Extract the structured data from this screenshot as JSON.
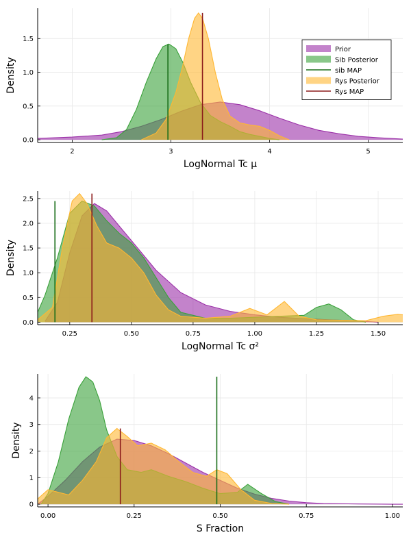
{
  "chart_data": [
    {
      "type": "area",
      "xlabel": "LogNormal Tc μ",
      "ylabel": "Density",
      "xlim": [
        1.65,
        5.35
      ],
      "ylim": [
        -0.04,
        1.95
      ],
      "xticks": [
        2,
        3,
        4,
        5
      ],
      "xtick_labels": [
        "2",
        "3",
        "4",
        "5"
      ],
      "yticks": [
        0,
        0.5,
        1,
        1.5
      ],
      "ytick_labels": [
        "0.0",
        "0.5",
        "1.0",
        "1.5"
      ],
      "grid": true,
      "legend": {
        "placement": "top-right",
        "entries": [
          {
            "label": "Prior",
            "kind": "fill",
            "color": "#9b30a8"
          },
          {
            "label": "Sib Posterior",
            "kind": "fill",
            "color": "#3aa13a"
          },
          {
            "label": "sib MAP",
            "kind": "line",
            "color": "#1a6e1a"
          },
          {
            "label": "Rys Posterior",
            "kind": "fill",
            "color": "#ffb732"
          },
          {
            "label": "Rys MAP",
            "kind": "line",
            "color": "#8b1a1a"
          }
        ]
      },
      "series": [
        {
          "name": "Prior",
          "color": "#9b30a8",
          "x": [
            1.65,
            2.0,
            2.3,
            2.5,
            2.7,
            2.9,
            3.1,
            3.3,
            3.5,
            3.7,
            3.9,
            4.1,
            4.3,
            4.5,
            4.7,
            4.9,
            5.1,
            5.35
          ],
          "y": [
            0.02,
            0.04,
            0.07,
            0.12,
            0.2,
            0.3,
            0.42,
            0.52,
            0.56,
            0.52,
            0.43,
            0.32,
            0.22,
            0.14,
            0.09,
            0.05,
            0.03,
            0.01
          ]
        },
        {
          "name": "Sib Posterior",
          "color": "#3aa13a",
          "x": [
            2.3,
            2.45,
            2.55,
            2.65,
            2.75,
            2.85,
            2.92,
            2.98,
            3.05,
            3.12,
            3.2,
            3.3,
            3.4,
            3.5,
            3.6,
            3.7,
            3.8,
            3.9,
            4.0,
            4.1
          ],
          "y": [
            0.0,
            0.03,
            0.15,
            0.45,
            0.85,
            1.2,
            1.38,
            1.42,
            1.35,
            1.15,
            0.85,
            0.55,
            0.36,
            0.27,
            0.2,
            0.12,
            0.08,
            0.05,
            0.02,
            0.0
          ]
        },
        {
          "name": "Rys Posterior",
          "color": "#ffb732",
          "x": [
            2.7,
            2.85,
            2.95,
            3.05,
            3.12,
            3.18,
            3.24,
            3.28,
            3.32,
            3.38,
            3.45,
            3.52,
            3.6,
            3.7,
            3.8,
            3.9,
            4.0,
            4.1,
            4.2
          ],
          "y": [
            0.0,
            0.1,
            0.3,
            0.7,
            1.1,
            1.5,
            1.8,
            1.88,
            1.8,
            1.5,
            1.0,
            0.6,
            0.35,
            0.25,
            0.22,
            0.2,
            0.14,
            0.06,
            0.0
          ]
        }
      ],
      "vlines": [
        {
          "name": "sib MAP",
          "color": "#1a6e1a",
          "x": 2.97,
          "y": 1.42
        },
        {
          "name": "Rys MAP",
          "color": "#8b1a1a",
          "x": 3.32,
          "y": 1.88
        }
      ]
    },
    {
      "type": "area",
      "xlabel": "LogNormal Tc σ²",
      "ylabel": "Density",
      "xlim": [
        0.12,
        1.6
      ],
      "ylim": [
        -0.05,
        2.65
      ],
      "xticks": [
        0.25,
        0.5,
        0.75,
        1.0,
        1.25,
        1.5
      ],
      "xtick_labels": [
        "0.25",
        "0.50",
        "0.75",
        "1.00",
        "1.25",
        "1.50"
      ],
      "yticks": [
        0,
        0.5,
        1,
        1.5,
        2,
        2.5
      ],
      "ytick_labels": [
        "0.0",
        "0.5",
        "1.0",
        "1.5",
        "2.0",
        "2.5"
      ],
      "grid": true,
      "series": [
        {
          "name": "Prior",
          "color": "#9b30a8",
          "x": [
            0.15,
            0.2,
            0.25,
            0.3,
            0.35,
            0.4,
            0.45,
            0.5,
            0.55,
            0.6,
            0.7,
            0.8,
            0.9,
            1.0,
            1.1,
            1.2,
            1.3,
            1.4,
            1.5
          ],
          "y": [
            0.02,
            0.4,
            1.4,
            2.15,
            2.4,
            2.25,
            1.95,
            1.65,
            1.35,
            1.05,
            0.6,
            0.35,
            0.22,
            0.15,
            0.1,
            0.07,
            0.05,
            0.03,
            0.0
          ]
        },
        {
          "name": "Sib Posterior",
          "color": "#3aa13a",
          "x": [
            0.12,
            0.15,
            0.2,
            0.25,
            0.3,
            0.35,
            0.4,
            0.45,
            0.5,
            0.55,
            0.6,
            0.65,
            0.7,
            0.8,
            0.9,
            1.0,
            1.1,
            1.2,
            1.25,
            1.3,
            1.35,
            1.4,
            1.45
          ],
          "y": [
            0.2,
            0.55,
            1.3,
            2.2,
            2.45,
            2.35,
            2.05,
            1.8,
            1.6,
            1.3,
            0.9,
            0.5,
            0.2,
            0.08,
            0.08,
            0.1,
            0.12,
            0.14,
            0.3,
            0.37,
            0.25,
            0.05,
            0.0
          ]
        },
        {
          "name": "Rys Posterior",
          "color": "#ffb732",
          "x": [
            0.12,
            0.18,
            0.22,
            0.26,
            0.29,
            0.32,
            0.36,
            0.4,
            0.45,
            0.5,
            0.55,
            0.6,
            0.65,
            0.7,
            0.8,
            0.9,
            0.98,
            1.05,
            1.12,
            1.18,
            1.25,
            1.35,
            1.45,
            1.52,
            1.58,
            1.6
          ],
          "y": [
            0.05,
            0.3,
            1.5,
            2.45,
            2.6,
            2.4,
            1.95,
            1.6,
            1.5,
            1.3,
            1.0,
            0.55,
            0.25,
            0.12,
            0.08,
            0.12,
            0.28,
            0.15,
            0.42,
            0.12,
            0.05,
            0.04,
            0.03,
            0.12,
            0.16,
            0.15
          ]
        }
      ],
      "vlines": [
        {
          "name": "sib MAP",
          "color": "#1a6e1a",
          "x": 0.19,
          "y": 2.45
        },
        {
          "name": "Rys MAP",
          "color": "#8b1a1a",
          "x": 0.34,
          "y": 2.6
        }
      ]
    },
    {
      "type": "area",
      "xlabel": "S Fraction",
      "ylabel": "Density",
      "xlim": [
        -0.03,
        1.03
      ],
      "ylim": [
        -0.1,
        4.9
      ],
      "xticks": [
        0,
        0.25,
        0.5,
        0.75,
        1.0
      ],
      "xtick_labels": [
        "0.00",
        "0.25",
        "0.50",
        "0.75",
        "1.00"
      ],
      "yticks": [
        0,
        1,
        2,
        3,
        4
      ],
      "ytick_labels": [
        "0",
        "1",
        "2",
        "3",
        "4"
      ],
      "grid": true,
      "series": [
        {
          "name": "Prior",
          "color": "#9b30a8",
          "x": [
            -0.03,
            0.0,
            0.05,
            0.1,
            0.15,
            0.2,
            0.25,
            0.3,
            0.35,
            0.4,
            0.45,
            0.5,
            0.55,
            0.6,
            0.65,
            0.7,
            0.75,
            0.8,
            0.9,
            1.0,
            1.03
          ],
          "y": [
            0.0,
            0.3,
            0.9,
            1.6,
            2.15,
            2.45,
            2.4,
            2.2,
            1.9,
            1.55,
            1.2,
            0.9,
            0.6,
            0.38,
            0.22,
            0.12,
            0.06,
            0.03,
            0.01,
            0.0,
            0.0
          ]
        },
        {
          "name": "Sib Posterior",
          "color": "#3aa13a",
          "x": [
            -0.02,
            0.0,
            0.03,
            0.06,
            0.09,
            0.11,
            0.13,
            0.15,
            0.17,
            0.2,
            0.23,
            0.27,
            0.3,
            0.35,
            0.4,
            0.45,
            0.5,
            0.55,
            0.58,
            0.62,
            0.66,
            0.7
          ],
          "y": [
            0.0,
            0.4,
            1.6,
            3.2,
            4.4,
            4.8,
            4.6,
            3.9,
            2.8,
            1.8,
            1.3,
            1.2,
            1.3,
            1.05,
            0.85,
            0.6,
            0.4,
            0.45,
            0.75,
            0.4,
            0.1,
            0.0
          ]
        },
        {
          "name": "Rys Posterior",
          "color": "#ffb732",
          "x": [
            -0.03,
            0.0,
            0.03,
            0.06,
            0.1,
            0.14,
            0.17,
            0.2,
            0.23,
            0.26,
            0.3,
            0.34,
            0.38,
            0.42,
            0.46,
            0.49,
            0.52,
            0.56,
            0.6,
            0.65,
            0.7
          ],
          "y": [
            0.2,
            0.55,
            0.45,
            0.35,
            0.9,
            1.6,
            2.5,
            2.85,
            2.55,
            2.2,
            2.3,
            2.05,
            1.6,
            1.2,
            1.05,
            1.3,
            1.15,
            0.55,
            0.15,
            0.03,
            0.0
          ]
        }
      ],
      "vlines": [
        {
          "name": "sib MAP",
          "color": "#1a6e1a",
          "x": 0.49,
          "y": 4.8
        },
        {
          "name": "Rys MAP",
          "color": "#8b1a1a",
          "x": 0.21,
          "y": 2.85
        }
      ]
    }
  ]
}
